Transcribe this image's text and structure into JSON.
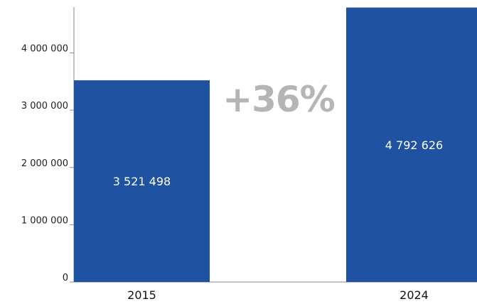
{
  "chart_data": {
    "type": "bar",
    "categories": [
      "2015",
      "2024"
    ],
    "values": [
      3521498,
      4792626
    ],
    "data_labels": [
      "3 521 498",
      "4 792 626"
    ],
    "ylim": [
      0,
      4800000
    ],
    "yticks": [
      0,
      1000000,
      2000000,
      3000000,
      4000000
    ],
    "ytick_labels": [
      "0",
      "1 000 000",
      "2 000 000",
      "3 000 000",
      "4 000 000"
    ],
    "annotation": "+36%",
    "grid": false,
    "legend": "none",
    "bar_color": "#1f52a0"
  }
}
